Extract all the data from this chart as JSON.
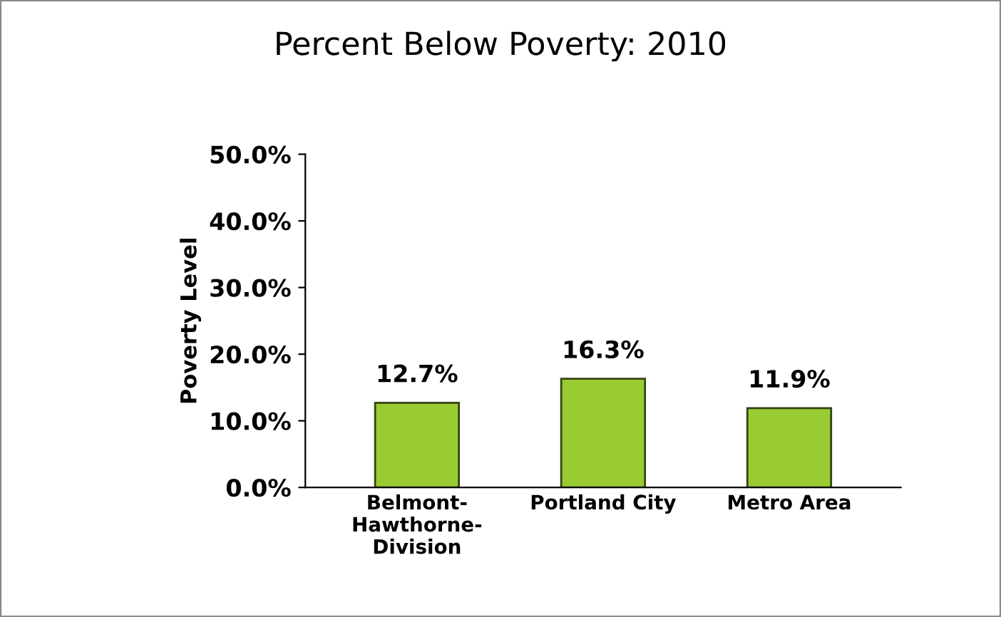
{
  "chart_data": {
    "type": "bar",
    "title": "Percent Below Poverty: 2010",
    "ylabel": "Poverty Level",
    "categories": [
      "Belmont-\nHawthorne-\nDivision",
      "Portland City",
      "Metro Area"
    ],
    "values": [
      12.7,
      16.3,
      11.9
    ],
    "value_labels": [
      "12.7%",
      "16.3%",
      "11.9%"
    ],
    "color": "#99cc33",
    "ylim": [
      0,
      50
    ],
    "yticks": [
      {
        "value": 0,
        "label": "0.0%"
      },
      {
        "value": 10,
        "label": "10.0%"
      },
      {
        "value": 20,
        "label": "20.0%"
      },
      {
        "value": 30,
        "label": "30.0%"
      },
      {
        "value": 40,
        "label": "40.0%"
      },
      {
        "value": 50,
        "label": "50.0%"
      }
    ],
    "grid": false,
    "legend": false
  }
}
